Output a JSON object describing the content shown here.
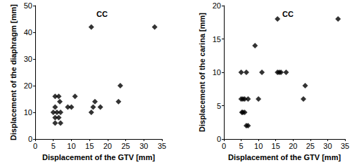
{
  "chart_data": [
    {
      "type": "scatter",
      "title": "CC",
      "x_label": "Displacement of the GTV [mm]",
      "y_label": "Displacement of the diaphragm [mm]",
      "x": [
        5.5,
        6.5,
        6.8,
        5.5,
        5,
        6,
        5.5,
        6.5,
        5.5,
        7,
        7,
        9,
        10,
        11,
        15.5,
        15.5,
        16,
        16.5,
        18,
        23,
        23.5,
        33
      ],
      "values": [
        16,
        16,
        14,
        12,
        10,
        10,
        8,
        8,
        6,
        6,
        10,
        12,
        12,
        16,
        42,
        10,
        12,
        14,
        12,
        14,
        20,
        42
      ],
      "color": "#000000",
      "marker": "diamond",
      "xlim": [
        0,
        35
      ],
      "xticks": [
        0,
        5,
        10,
        15,
        20,
        25,
        30,
        35
      ],
      "ylim": [
        0,
        50
      ],
      "yticks": [
        0,
        10,
        20,
        30,
        40,
        50
      ],
      "grid": false
    },
    {
      "type": "scatter",
      "title": "CC",
      "x_label": "Displacement of the GTV [mm]",
      "y_label": "Displacement of the carina [mm]",
      "x": [
        5,
        5.5,
        5.5,
        6,
        6,
        6.5,
        6.5,
        7,
        7,
        5,
        5.2,
        9,
        10,
        11,
        15.5,
        15.5,
        16,
        16.5,
        18,
        23,
        23.5,
        33
      ],
      "values": [
        10,
        6,
        4,
        4,
        6,
        10,
        2,
        2,
        6,
        6,
        4,
        14,
        6,
        10,
        18,
        10,
        10,
        10,
        10,
        6,
        8,
        18
      ],
      "color": "#000000",
      "marker": "diamond",
      "xlim": [
        0,
        35
      ],
      "xticks": [
        0,
        5,
        10,
        15,
        20,
        25,
        30,
        35
      ],
      "ylim": [
        0,
        20
      ],
      "yticks": [
        0,
        5,
        10,
        15,
        20
      ],
      "grid": false
    }
  ]
}
